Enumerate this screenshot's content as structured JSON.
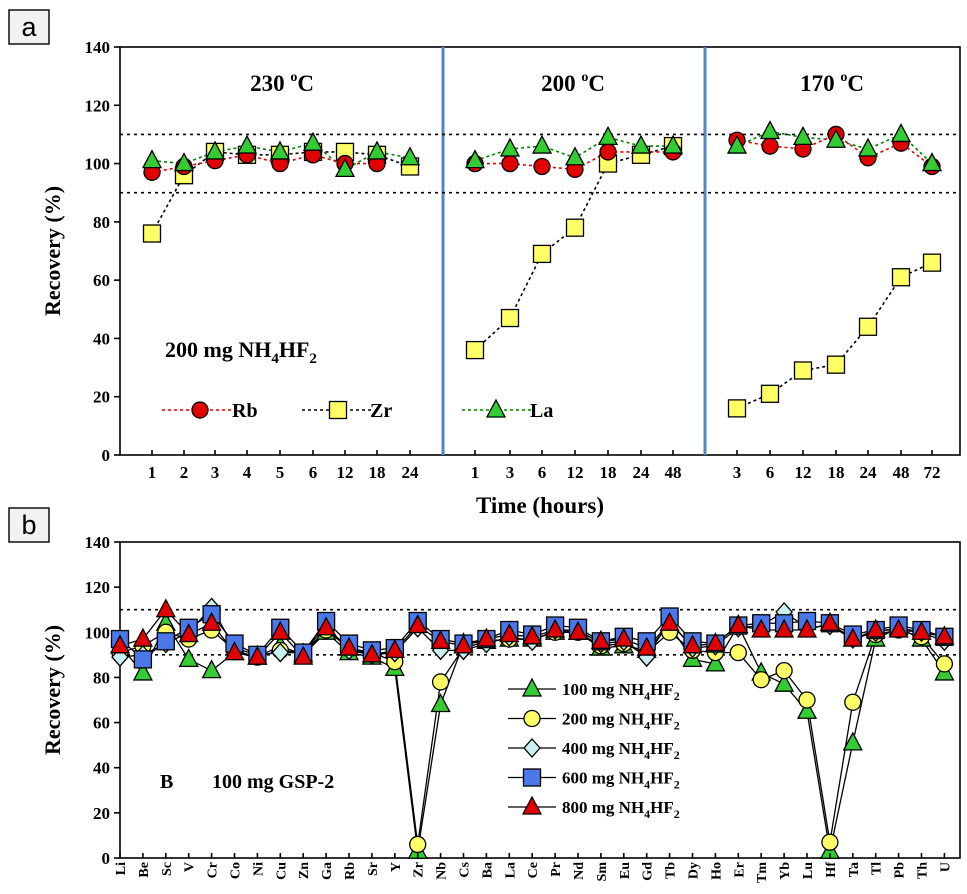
{
  "chart_data": [
    {
      "panel": "a",
      "type": "line",
      "ylabel": "Recovery  (%)",
      "xlabel": "Time (hours)",
      "ylim": [
        0,
        140
      ],
      "yticks": [
        0,
        20,
        40,
        60,
        80,
        100,
        120,
        140
      ],
      "reference_lines": [
        90,
        110
      ],
      "annotation": "200 mg NH4HF2",
      "series_info": [
        {
          "name": "Rb",
          "color": "#e00000",
          "line_color": "#e00000",
          "marker": "circle"
        },
        {
          "name": "Zr",
          "color": "#ffff66",
          "line_color": "#000000",
          "marker": "square"
        },
        {
          "name": "La",
          "color": "#33cc33",
          "line_color": "#008000",
          "marker": "triangle"
        }
      ],
      "groups": [
        {
          "title": "230 oC",
          "temp": "230",
          "unit_sup": "o",
          "unit": "C",
          "x": [
            "1",
            "2",
            "3",
            "4",
            "5",
            "6",
            "12",
            "18",
            "24"
          ],
          "series": [
            {
              "name": "Rb",
              "values": [
                97,
                99,
                101,
                103,
                100,
                103,
                100,
                100,
                null
              ]
            },
            {
              "name": "Zr",
              "values": [
                76,
                96,
                104,
                103,
                103,
                104,
                104,
                103,
                99
              ]
            },
            {
              "name": "La",
              "values": [
                101,
                100,
                104,
                106,
                104,
                107,
                98,
                104,
                102
              ]
            }
          ]
        },
        {
          "title": "200 oC",
          "temp": "200",
          "unit_sup": "o",
          "unit": "C",
          "x": [
            "1",
            "3",
            "6",
            "12",
            "18",
            "24",
            "48"
          ],
          "series": [
            {
              "name": "Rb",
              "values": [
                100,
                100,
                99,
                98,
                104,
                null,
                104
              ]
            },
            {
              "name": "Zr",
              "values": [
                36,
                47,
                69,
                78,
                100,
                103,
                106
              ]
            },
            {
              "name": "La",
              "values": [
                101,
                105,
                106,
                102,
                109,
                106,
                106
              ]
            }
          ]
        },
        {
          "title": "170 oC",
          "temp": "170",
          "unit_sup": "o",
          "unit": "C",
          "x": [
            "3",
            "6",
            "12",
            "18",
            "24",
            "48",
            "72"
          ],
          "series": [
            {
              "name": "Rb",
              "values": [
                108,
                106,
                105,
                110,
                102,
                107,
                99
              ]
            },
            {
              "name": "Zr",
              "values": [
                16,
                21,
                29,
                31,
                44,
                61,
                66
              ]
            },
            {
              "name": "La",
              "values": [
                106,
                111,
                109,
                108,
                105,
                110,
                100
              ]
            }
          ]
        }
      ]
    },
    {
      "panel": "b",
      "type": "line",
      "ylabel": "Recovery  (%)",
      "ylim": [
        0,
        140
      ],
      "yticks": [
        0,
        20,
        40,
        60,
        80,
        100,
        120,
        140
      ],
      "reference_lines": [
        90,
        110
      ],
      "annotation_b": "B",
      "annotation_text": "100 mg GSP-2",
      "categories": [
        "Li",
        "Be",
        "Sc",
        "V",
        "Cr",
        "Co",
        "Ni",
        "Cu",
        "Zn",
        "Ga",
        "Rb",
        "Sr",
        "Y",
        "Zr",
        "Nb",
        "Cs",
        "Ba",
        "La",
        "Ce",
        "Pr",
        "Nd",
        "Sm",
        "Eu",
        "Gd",
        "Tb",
        "Dy",
        "Ho",
        "Er",
        "Tm",
        "Yb",
        "Lu",
        "Hf",
        "Ta",
        "Tl",
        "Pb",
        "Th",
        "U"
      ],
      "series": [
        {
          "name": "100 mg NH4HF2",
          "prefix": "100 mg NH",
          "sub1": "4",
          "mid": "HF",
          "sub2": "2",
          "color": "#33cc33",
          "marker": "triangle",
          "values": [
            94,
            82,
            104,
            88,
            83,
            91,
            89,
            94,
            90,
            100,
            91,
            89,
            84,
            3,
            68,
            95,
            96,
            97,
            97,
            100,
            100,
            93,
            94,
            92,
            103,
            88,
            86,
            103,
            82,
            77,
            65,
            3,
            51,
            97,
            102,
            97,
            82
          ]
        },
        {
          "name": "200 mg NH4HF2",
          "prefix": "200 mg NH",
          "sub1": "4",
          "mid": "HF",
          "sub2": "2",
          "color": "#ffff66",
          "marker": "circle",
          "values": [
            91,
            94,
            100,
            97,
            101,
            92,
            89,
            92,
            91,
            101,
            93,
            91,
            87,
            6,
            78,
            93,
            96,
            97,
            97,
            100,
            100,
            94,
            95,
            91,
            100,
            92,
            91,
            91,
            79,
            83,
            70,
            7,
            69,
            99,
            101,
            98,
            86
          ]
        },
        {
          "name": "400 mg NH4HF2",
          "prefix": "400 mg NH",
          "sub1": "4",
          "mid": "HF",
          "sub2": "2",
          "color": "#c9f0f0",
          "marker": "diamond",
          "values": [
            89,
            90,
            95,
            100,
            111,
            93,
            90,
            91,
            91,
            103,
            92,
            90,
            91,
            102,
            92,
            92,
            95,
            98,
            96,
            101,
            101,
            95,
            96,
            89,
            105,
            93,
            94,
            102,
            103,
            109,
            102,
            103,
            97,
            100,
            102,
            100,
            96
          ]
        },
        {
          "name": "600 mg NH4HF2",
          "prefix": "600 mg NH",
          "sub1": "4",
          "mid": "HF",
          "sub2": "2",
          "color": "#4a78e8",
          "marker": "square",
          "values": [
            97,
            88,
            96,
            102,
            108,
            95,
            90,
            102,
            91,
            105,
            95,
            92,
            93,
            105,
            97,
            95,
            97,
            101,
            99,
            103,
            102,
            96,
            98,
            96,
            107,
            96,
            95,
            103,
            104,
            104,
            105,
            104,
            99,
            101,
            103,
            101,
            98
          ]
        },
        {
          "name": "800 mg NH4HF2",
          "prefix": "800 mg NH",
          "sub1": "4",
          "mid": "HF",
          "sub2": "2",
          "color": "#e00000",
          "marker": "triangle",
          "values": [
            94,
            97,
            110,
            99,
            104,
            91,
            89,
            100,
            89,
            102,
            93,
            90,
            92,
            103,
            96,
            94,
            97,
            99,
            98,
            101,
            100,
            96,
            97,
            93,
            104,
            94,
            95,
            103,
            101,
            101,
            101,
            104,
            97,
            101,
            101,
            100,
            98
          ]
        }
      ]
    }
  ]
}
